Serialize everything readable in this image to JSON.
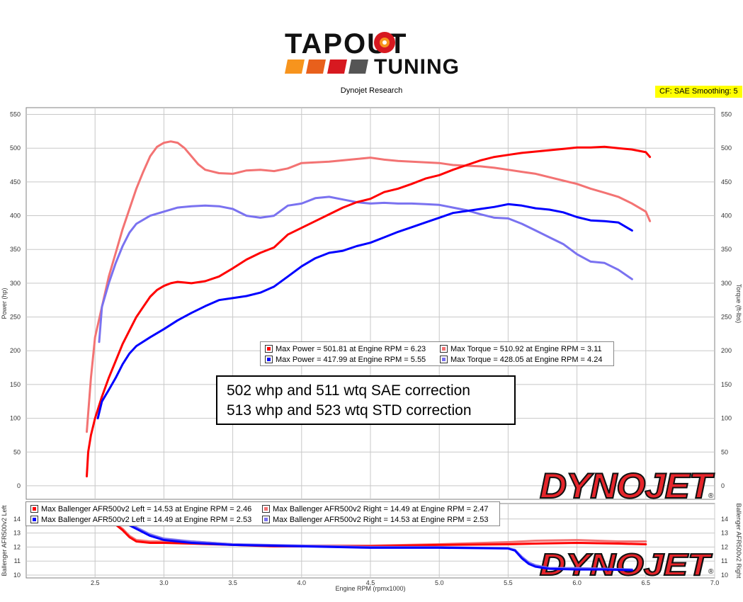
{
  "header": {
    "logo_line1": "TAPOUT",
    "logo_line2": "TUNING",
    "subtitle": "Dynojet Research",
    "cf_badge": "CF: SAE Smoothing: 5"
  },
  "colors": {
    "red": "#ff0000",
    "blue": "#0000ff",
    "light_red": "#f37373",
    "light_blue": "#7a72f0",
    "logo_orange": "#f7941d",
    "logo_red": "#d71920",
    "badge_yellow": "#ffff00"
  },
  "note": {
    "line1": "502 whp and 511 wtq SAE correction",
    "line2": "513 whp and 523 wtq STD correction"
  },
  "watermark": "DYNOJET",
  "main_legend": [
    {
      "text": "Max Power = 501.81 at Engine RPM = 6.23",
      "color": "#ff0000"
    },
    {
      "text": "Max Torque = 510.92 at Engine RPM = 3.11",
      "color": "#f37373"
    },
    {
      "text": "Max Power = 417.99 at Engine RPM = 5.55",
      "color": "#0000ff"
    },
    {
      "text": "Max Torque = 428.05 at Engine RPM = 4.24",
      "color": "#7a72f0"
    }
  ],
  "afr_legend": [
    {
      "text": "Max Ballenger AFR500v2 Left = 14.53 at Engine RPM = 2.46",
      "color": "#ff0000"
    },
    {
      "text": "Max Ballenger AFR500v2 Right = 14.49 at Engine RPM = 2.47",
      "color": "#f37373"
    },
    {
      "text": "Max Ballenger AFR500v2 Left = 14.49 at Engine RPM = 2.53",
      "color": "#0000ff"
    },
    {
      "text": "Max Ballenger AFR500v2 Right = 14.53 at Engine RPM = 2.53",
      "color": "#7a72f0"
    }
  ],
  "chart_data": [
    {
      "type": "line",
      "xlim": [
        2.0,
        7.0
      ],
      "ylim": [
        -20,
        560
      ],
      "x_ticks": [
        2.5,
        3.0,
        3.5,
        4.0,
        4.5,
        5.0,
        5.5,
        6.0,
        6.5
      ],
      "x_tick_labels": [
        "2.5",
        "3.0",
        "3.5",
        "4.0",
        "4.5",
        "5.0",
        "5.5",
        "6.0",
        "6.5"
      ],
      "y_ticks": [
        0,
        50,
        100,
        150,
        200,
        250,
        300,
        350,
        400,
        450,
        500,
        550
      ],
      "y_tick_labels": [
        "0",
        "50",
        "100",
        "150",
        "200",
        "250",
        "300",
        "350",
        "400",
        "450",
        "500",
        "550"
      ],
      "y2_ticks": [
        0,
        50,
        100,
        150,
        200,
        250,
        300,
        350,
        400,
        450,
        500,
        550
      ],
      "y2_tick_labels": [
        "0",
        "50",
        "100",
        "150",
        "200",
        "250",
        "300",
        "350",
        "400",
        "450",
        "500",
        "550"
      ],
      "ylabel": "Power (hp)",
      "y2label": "Torque (ft-lbs)",
      "grid": true,
      "series": [
        {
          "color": "#f37373",
          "x": [
            2.44,
            2.47,
            2.5,
            2.55,
            2.6,
            2.65,
            2.7,
            2.75,
            2.8,
            2.85,
            2.9,
            2.95,
            3.0,
            3.05,
            3.1,
            3.15,
            3.2,
            3.25,
            3.3,
            3.4,
            3.5,
            3.6,
            3.7,
            3.8,
            3.9,
            4.0,
            4.1,
            4.2,
            4.3,
            4.4,
            4.5,
            4.6,
            4.7,
            4.8,
            4.9,
            5.0,
            5.1,
            5.2,
            5.3,
            5.4,
            5.5,
            5.6,
            5.7,
            5.8,
            5.9,
            6.0,
            6.1,
            6.2,
            6.3,
            6.4,
            6.5,
            6.53
          ],
          "y": [
            80,
            160,
            220,
            265,
            310,
            345,
            380,
            410,
            440,
            465,
            488,
            502,
            508,
            510,
            508,
            500,
            488,
            476,
            468,
            463,
            462,
            467,
            468,
            466,
            470,
            478,
            479,
            480,
            482,
            484,
            486,
            483,
            481,
            480,
            479,
            478,
            475,
            474,
            473,
            471,
            468,
            465,
            462,
            457,
            452,
            447,
            440,
            434,
            428,
            418,
            406,
            392
          ]
        },
        {
          "color": "#7a72f0",
          "x": [
            2.53,
            2.55,
            2.6,
            2.65,
            2.7,
            2.75,
            2.8,
            2.9,
            3.0,
            3.1,
            3.2,
            3.3,
            3.4,
            3.5,
            3.6,
            3.7,
            3.8,
            3.9,
            4.0,
            4.1,
            4.2,
            4.3,
            4.4,
            4.5,
            4.6,
            4.7,
            4.8,
            4.9,
            5.0,
            5.1,
            5.2,
            5.3,
            5.4,
            5.5,
            5.6,
            5.7,
            5.8,
            5.9,
            6.0,
            6.1,
            6.2,
            6.3,
            6.4
          ],
          "y": [
            213,
            265,
            300,
            330,
            355,
            375,
            388,
            400,
            406,
            412,
            414,
            415,
            414,
            410,
            400,
            397,
            400,
            415,
            418,
            426,
            428,
            424,
            420,
            418,
            419,
            418,
            418,
            417,
            416,
            412,
            408,
            402,
            397,
            396,
            388,
            378,
            368,
            358,
            343,
            332,
            330,
            320,
            306
          ]
        },
        {
          "color": "#ff0000",
          "x": [
            2.44,
            2.45,
            2.47,
            2.5,
            2.55,
            2.6,
            2.65,
            2.7,
            2.75,
            2.8,
            2.85,
            2.9,
            2.95,
            3.0,
            3.05,
            3.1,
            3.2,
            3.3,
            3.4,
            3.5,
            3.6,
            3.7,
            3.8,
            3.9,
            4.0,
            4.1,
            4.2,
            4.3,
            4.4,
            4.5,
            4.6,
            4.7,
            4.8,
            4.9,
            5.0,
            5.1,
            5.2,
            5.3,
            5.4,
            5.5,
            5.6,
            5.7,
            5.8,
            5.9,
            6.0,
            6.1,
            6.2,
            6.3,
            6.4,
            6.5,
            6.53
          ],
          "y": [
            14,
            50,
            75,
            100,
            132,
            160,
            185,
            210,
            230,
            250,
            265,
            280,
            290,
            296,
            300,
            302,
            300,
            303,
            310,
            322,
            335,
            345,
            353,
            372,
            382,
            392,
            402,
            412,
            420,
            425,
            435,
            440,
            447,
            455,
            460,
            468,
            475,
            482,
            487,
            490,
            493,
            495,
            497,
            499,
            501,
            501,
            502,
            500,
            498,
            494,
            487
          ]
        },
        {
          "color": "#0000ff",
          "x": [
            2.52,
            2.55,
            2.6,
            2.65,
            2.7,
            2.75,
            2.8,
            2.9,
            3.0,
            3.1,
            3.2,
            3.3,
            3.4,
            3.5,
            3.6,
            3.7,
            3.8,
            3.9,
            4.0,
            4.1,
            4.2,
            4.3,
            4.4,
            4.5,
            4.6,
            4.7,
            4.8,
            4.9,
            5.0,
            5.1,
            5.2,
            5.3,
            5.4,
            5.5,
            5.6,
            5.7,
            5.8,
            5.9,
            6.0,
            6.1,
            6.2,
            6.3,
            6.4
          ],
          "y": [
            100,
            125,
            142,
            160,
            180,
            196,
            207,
            220,
            232,
            245,
            256,
            266,
            275,
            278,
            281,
            286,
            295,
            310,
            325,
            337,
            345,
            348,
            355,
            360,
            368,
            376,
            383,
            390,
            397,
            404,
            407,
            410,
            413,
            417,
            415,
            411,
            409,
            405,
            398,
            393,
            392,
            390,
            378
          ]
        }
      ]
    },
    {
      "type": "line",
      "xlim": [
        2.0,
        7.0
      ],
      "ylim": [
        9.8,
        15.1
      ],
      "x_ticks": [
        2.5,
        3.0,
        3.5,
        4.0,
        4.5,
        5.0,
        5.5,
        6.0,
        6.5,
        7.0
      ],
      "x_tick_labels": [
        "2.5",
        "3.0",
        "3.5",
        "4.0",
        "4.5",
        "5.0",
        "5.5",
        "6.0",
        "6.5",
        "7.0"
      ],
      "xlabel": "Engine RPM (rpmx1000)",
      "y_ticks": [
        10,
        11,
        12,
        13,
        14
      ],
      "y_tick_labels": [
        "10",
        "11",
        "12",
        "13",
        "14"
      ],
      "y2_ticks": [
        10,
        11,
        12,
        13,
        14
      ],
      "y2_tick_labels": [
        "10",
        "11",
        "12",
        "13",
        "14"
      ],
      "ylabel": "Ballenger AFR500v2 Left",
      "y2label": "Ballenger AFR500v2 Right",
      "grid": true,
      "series": [
        {
          "color": "#f37373",
          "x": [
            2.47,
            2.6,
            2.7,
            2.75,
            2.8,
            2.9,
            3.0,
            3.2,
            3.5,
            3.8,
            4.0,
            4.5,
            5.0,
            5.5,
            5.7,
            6.0,
            6.3,
            6.5
          ],
          "y": [
            14.49,
            14.0,
            13.3,
            12.8,
            12.5,
            12.4,
            12.4,
            12.4,
            12.2,
            12.1,
            12.1,
            12.1,
            12.2,
            12.35,
            12.45,
            12.5,
            12.4,
            12.4
          ]
        },
        {
          "color": "#ff0000",
          "x": [
            2.46,
            2.6,
            2.7,
            2.75,
            2.8,
            2.9,
            3.0,
            3.2,
            3.5,
            3.8,
            4.0,
            4.5,
            5.0,
            5.5,
            5.7,
            6.0,
            6.3,
            6.5
          ],
          "y": [
            14.53,
            14.0,
            13.2,
            12.7,
            12.4,
            12.3,
            12.3,
            12.25,
            12.15,
            12.05,
            12.05,
            12.05,
            12.15,
            12.2,
            12.25,
            12.3,
            12.25,
            12.2
          ]
        },
        {
          "color": "#7a72f0",
          "x": [
            2.53,
            2.6,
            2.7,
            2.8,
            2.9,
            3.0,
            3.2,
            3.5,
            4.0,
            4.5,
            5.0,
            5.5,
            5.55,
            5.6,
            5.65,
            5.7,
            5.8,
            6.0,
            6.2,
            6.4
          ],
          "y": [
            14.53,
            14.3,
            13.9,
            13.4,
            12.9,
            12.6,
            12.4,
            12.2,
            12.1,
            12.0,
            12.0,
            11.9,
            11.8,
            11.3,
            10.9,
            10.7,
            10.5,
            10.5,
            10.45,
            10.4
          ]
        },
        {
          "color": "#0000ff",
          "x": [
            2.53,
            2.6,
            2.7,
            2.8,
            2.9,
            3.0,
            3.2,
            3.5,
            4.0,
            4.5,
            5.0,
            5.5,
            5.55,
            5.6,
            5.65,
            5.7,
            5.8,
            6.0,
            6.2,
            6.4
          ],
          "y": [
            14.49,
            14.2,
            13.8,
            13.3,
            12.8,
            12.5,
            12.3,
            12.15,
            12.05,
            11.95,
            11.95,
            11.9,
            11.75,
            11.2,
            10.8,
            10.6,
            10.45,
            10.4,
            10.4,
            10.35
          ]
        }
      ]
    }
  ]
}
